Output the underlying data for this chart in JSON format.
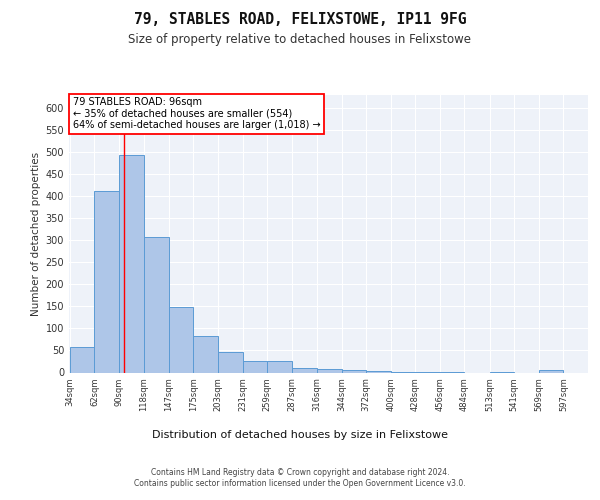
{
  "title1": "79, STABLES ROAD, FELIXSTOWE, IP11 9FG",
  "title2": "Size of property relative to detached houses in Felixstowe",
  "xlabel": "Distribution of detached houses by size in Felixstowe",
  "ylabel": "Number of detached properties",
  "bar_color": "#aec6e8",
  "bar_edge_color": "#5b9bd5",
  "bin_edges": [
    34,
    62,
    90,
    118,
    147,
    175,
    203,
    231,
    259,
    287,
    316,
    344,
    372,
    400,
    428,
    456,
    484,
    513,
    541,
    569,
    597
  ],
  "bar_heights": [
    57,
    411,
    494,
    307,
    148,
    82,
    46,
    25,
    25,
    10,
    8,
    5,
    3,
    2,
    2,
    1,
    0,
    1,
    0,
    5
  ],
  "red_line_x": 96,
  "annotation_text": "79 STABLES ROAD: 96sqm\n← 35% of detached houses are smaller (554)\n64% of semi-detached houses are larger (1,018) →",
  "yticks": [
    0,
    50,
    100,
    150,
    200,
    250,
    300,
    350,
    400,
    450,
    500,
    550,
    600
  ],
  "ylim": [
    0,
    630
  ],
  "background_color": "#eef2f9",
  "grid_color": "#ffffff",
  "footer_line1": "Contains HM Land Registry data © Crown copyright and database right 2024.",
  "footer_line2": "Contains public sector information licensed under the Open Government Licence v3.0."
}
